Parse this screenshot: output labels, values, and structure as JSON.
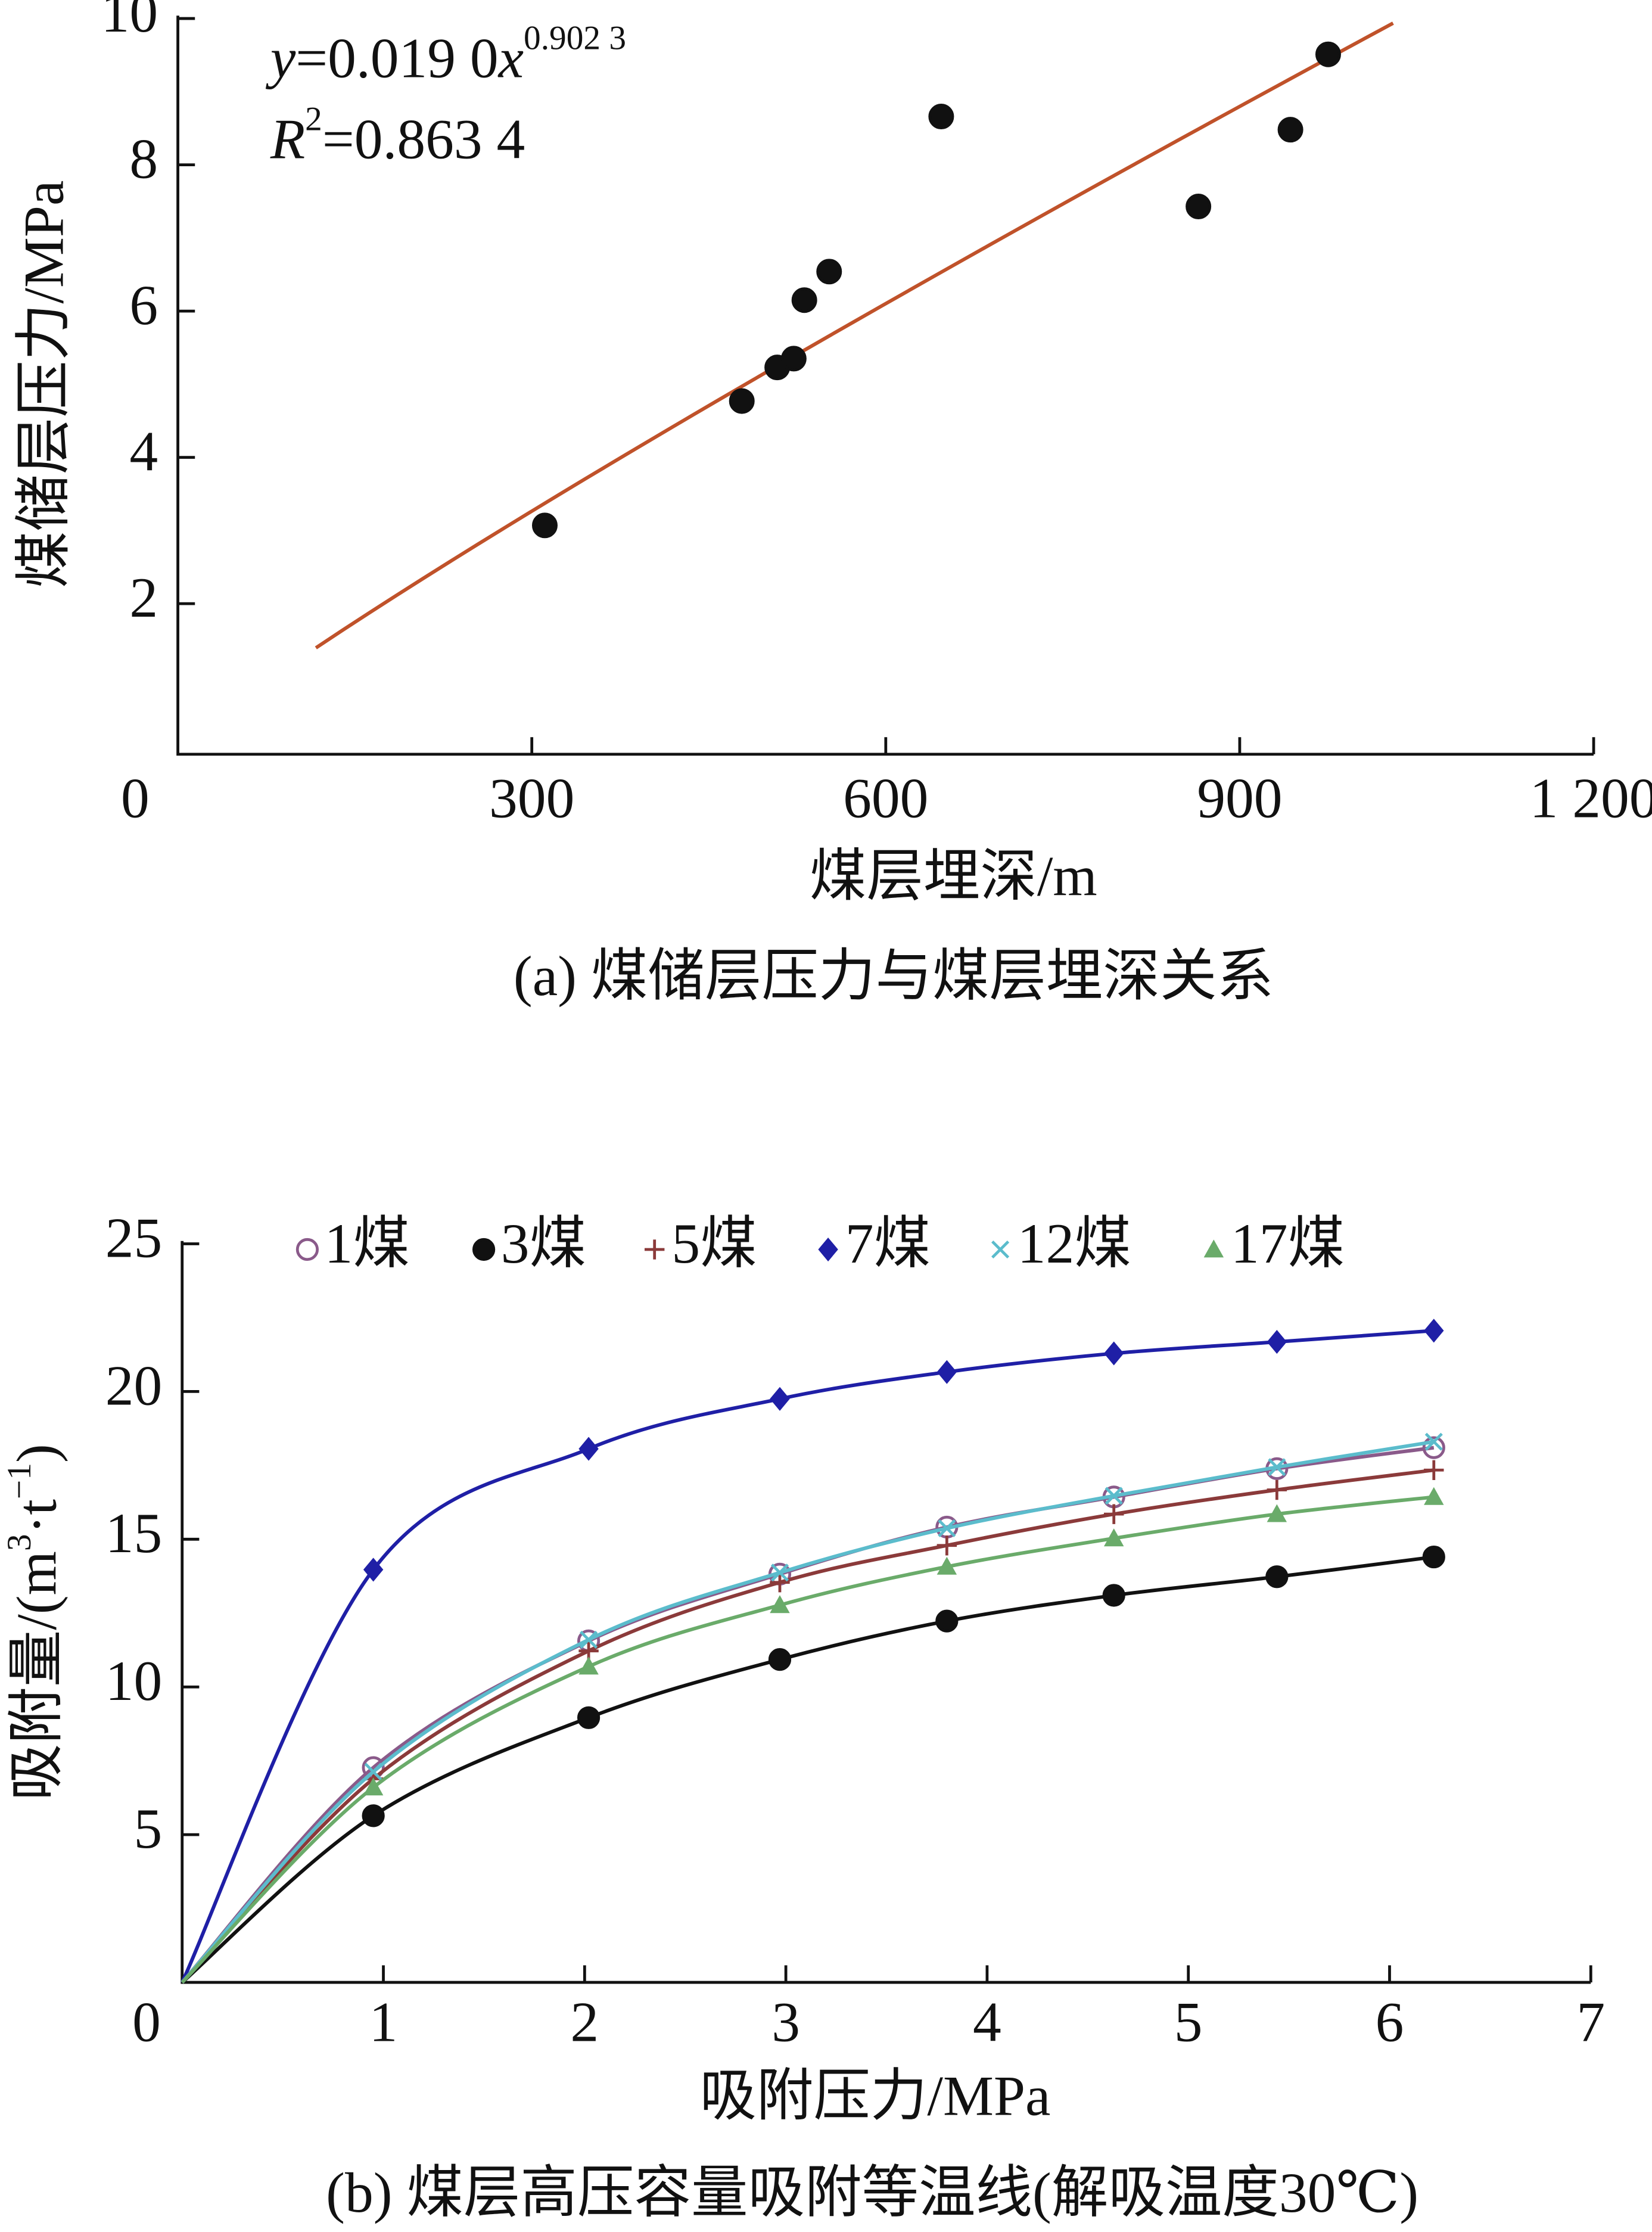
{
  "chart_data": [
    {
      "type": "scatter",
      "caption": "(a) 煤储层压力与煤层埋深关系",
      "xlabel": "煤层埋深/m",
      "ylabel": "煤储层压力/MPa",
      "x": [
        311,
        478,
        508,
        522,
        531,
        552,
        647,
        865,
        943,
        975
      ],
      "values": [
        3.07,
        4.77,
        5.23,
        5.35,
        6.15,
        6.54,
        8.66,
        7.43,
        8.48,
        9.51
      ],
      "color": "#111111",
      "fit": {
        "lhs": "y",
        "eq": "=",
        "coef": {
          "value": 0.019,
          "label": "0.019 0"
        },
        "var": "x",
        "exponent": {
          "value": 0.9023,
          "label": "0.902 3"
        },
        "r2_symbol": "R",
        "r2_power": "2",
        "r2_eq": "=",
        "r2": {
          "value": 0.8634,
          "label": "0.863 4"
        },
        "xrange": [
          117,
          1030
        ],
        "color": "#c0522a"
      },
      "xlim": [
        0,
        1200
      ],
      "xticks": [
        0,
        300,
        600,
        900,
        {
          "value": 1200,
          "label": "1 200"
        }
      ],
      "ylim": [
        0,
        10
      ],
      "yticks": [
        2,
        4,
        6,
        8,
        10
      ],
      "grid": false
    },
    {
      "type": "line",
      "caption": "(b) 煤层高压容量吸附等温线(解吸温度30℃)",
      "xlabel": "吸附压力/MPa",
      "ylabel": [
        "吸附量/(m",
        "3",
        "·t",
        "−1",
        ")"
      ],
      "x": [
        0.95,
        2.02,
        2.97,
        3.8,
        4.63,
        5.44,
        6.22
      ],
      "series": [
        {
          "name": "1煤",
          "color": "#8a5a8a",
          "marker": "circle-open",
          "values": [
            7.27,
            11.56,
            13.82,
            15.41,
            16.43,
            17.39,
            18.1
          ]
        },
        {
          "name": "3煤",
          "color": "#111111",
          "marker": "circle",
          "values": [
            5.64,
            8.96,
            10.93,
            12.23,
            13.1,
            13.73,
            14.4
          ]
        },
        {
          "name": "5煤",
          "color": "#8b3a3a",
          "marker": "plus",
          "values": [
            6.89,
            11.22,
            13.54,
            14.79,
            15.85,
            16.67,
            17.34
          ]
        },
        {
          "name": "7煤",
          "color": "#1f1fa6",
          "marker": "diamond",
          "values": [
            13.97,
            18.06,
            19.75,
            20.66,
            21.29,
            21.68,
            22.06
          ]
        },
        {
          "name": "12煤",
          "color": "#5bbccc",
          "marker": "cross",
          "values": [
            7.13,
            11.6,
            13.87,
            15.37,
            16.47,
            17.44,
            18.3
          ]
        },
        {
          "name": "17煤",
          "color": "#6aab6a",
          "marker": "triangle",
          "values": [
            6.6,
            10.69,
            12.77,
            14.07,
            15.03,
            15.85,
            16.43
          ]
        }
      ],
      "xlim": [
        0,
        7
      ],
      "xticks": [
        0,
        1,
        2,
        3,
        4,
        5,
        6,
        7
      ],
      "ylim": [
        0,
        25
      ],
      "yticks": [
        5,
        10,
        15,
        20,
        25
      ],
      "grid": false,
      "legend": "top"
    }
  ]
}
